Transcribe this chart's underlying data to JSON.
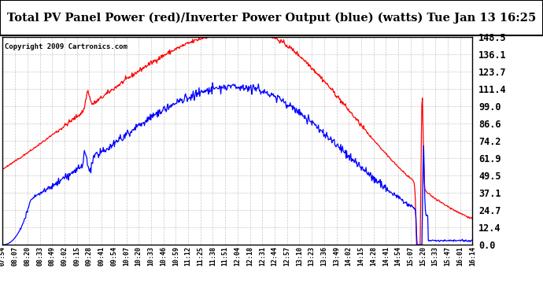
{
  "title": "Total PV Panel Power (red)/Inverter Power Output (blue) (watts) Tue Jan 13 16:25",
  "copyright": "Copyright 2009 Cartronics.com",
  "ylim": [
    0.0,
    148.5
  ],
  "yticks": [
    0.0,
    12.4,
    24.7,
    37.1,
    49.5,
    61.9,
    74.2,
    86.6,
    99.0,
    111.4,
    123.7,
    136.1,
    148.5
  ],
  "x_labels": [
    "07:54",
    "08:07",
    "08:20",
    "08:33",
    "08:49",
    "09:02",
    "09:15",
    "09:28",
    "09:41",
    "09:54",
    "10:07",
    "10:20",
    "10:33",
    "10:46",
    "10:59",
    "11:12",
    "11:25",
    "11:38",
    "11:51",
    "12:04",
    "12:18",
    "12:31",
    "12:44",
    "12:57",
    "13:10",
    "13:23",
    "13:36",
    "13:49",
    "14:02",
    "14:15",
    "14:28",
    "14:41",
    "14:54",
    "15:07",
    "15:20",
    "15:33",
    "15:47",
    "16:01",
    "16:14"
  ],
  "pv_color": "#ff0000",
  "inv_color": "#0000ff",
  "bg_color": "#ffffff",
  "grid_color": "#bbbbbb",
  "plot_bg": "#ffffff"
}
